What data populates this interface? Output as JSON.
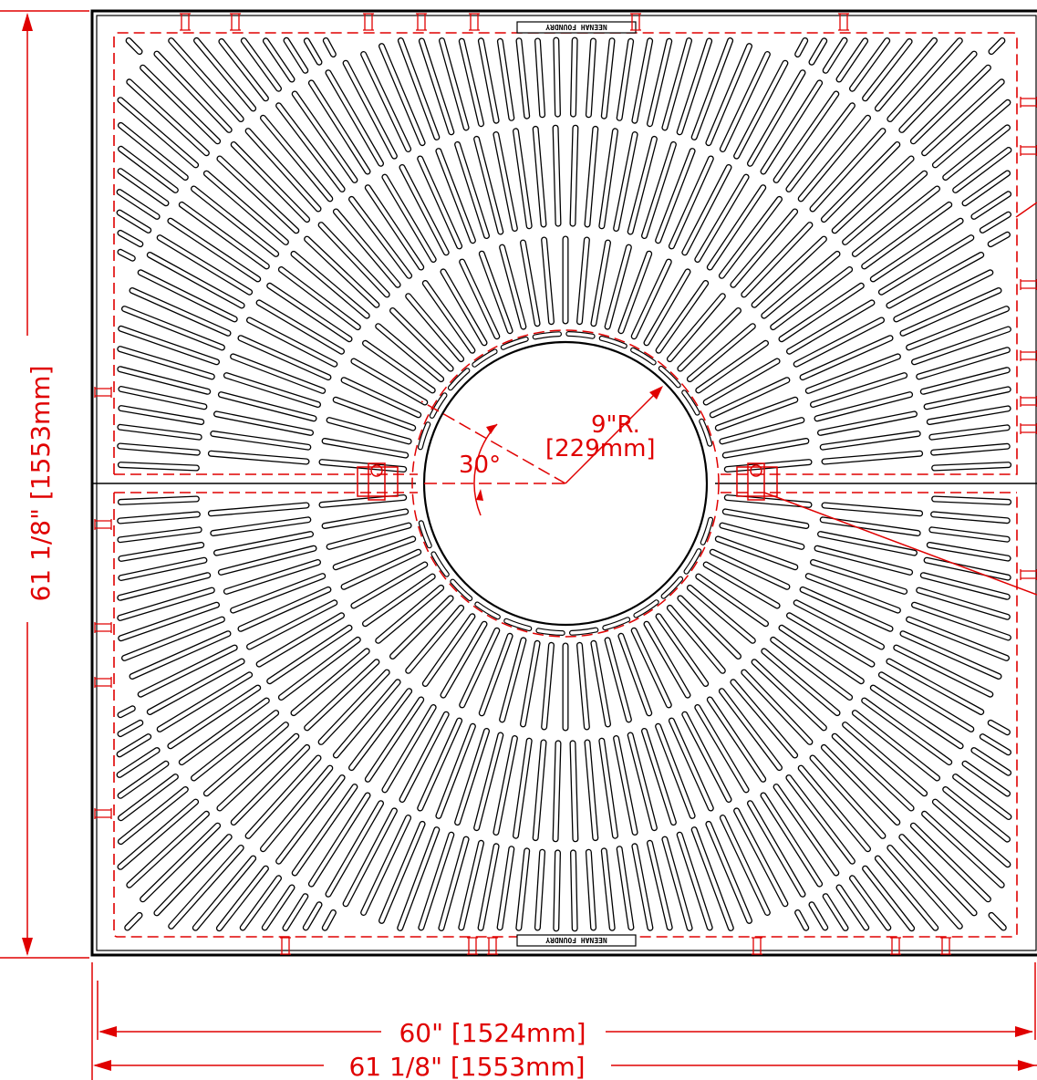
{
  "drawing": {
    "colors": {
      "outline": "#000000",
      "dimension": "#e00000",
      "background": "#ffffff"
    },
    "dimensions": {
      "bottom_inner": "60\" [1524mm]",
      "bottom_outer": "61 1/8\" [1553mm]",
      "left_vertical": "61 1/8\" [1553mm]",
      "radius_inches": "9\"R.",
      "radius_mm": "[229mm]",
      "angle": "30°"
    },
    "foundry_logo": {
      "text": "NEENAH FOUNDRY"
    }
  }
}
